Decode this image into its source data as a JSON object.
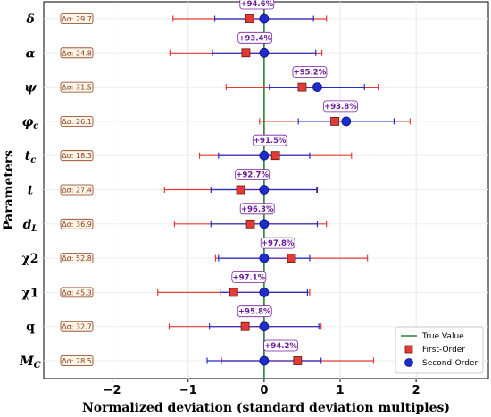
{
  "chart_data": {
    "type": "errorbar",
    "xlabel": "Normalized deviation (standard deviation multiples)",
    "ylabel": "Parameters",
    "xlim": [
      -2.9,
      2.95
    ],
    "xticks": [
      -2,
      -1,
      0,
      1,
      2
    ],
    "xtick_labels": [
      "−2",
      "−1",
      "0",
      "1",
      "2"
    ],
    "grid": true,
    "legend_position": "lower-right",
    "true_value": 0,
    "series": [
      {
        "name": "True Value",
        "color": "#2e7d32",
        "marker": "line"
      },
      {
        "name": "First-Order",
        "color": "#e53935",
        "marker": "square"
      },
      {
        "name": "Second-Order",
        "color": "#1e2ccc",
        "marker": "circle"
      }
    ],
    "parameters": [
      {
        "label": "δ",
        "style": "italic",
        "delta_sigma": "Δσ: 29.7",
        "improvement": "+94.6%",
        "first": {
          "center": -0.19,
          "low": -1.2,
          "high": 0.82
        },
        "second": {
          "center": 0.0,
          "low": -0.65,
          "high": 0.65
        }
      },
      {
        "label": "α",
        "style": "italic",
        "delta_sigma": "Δσ: 24.8",
        "improvement": "+93.4%",
        "first": {
          "center": -0.24,
          "low": -1.24,
          "high": 0.76
        },
        "second": {
          "center": 0.0,
          "low": -0.68,
          "high": 0.68
        }
      },
      {
        "label": "ψ",
        "style": "italic",
        "delta_sigma": "Δσ: 31.5",
        "improvement": "+95.2%",
        "first": {
          "center": 0.5,
          "low": -0.5,
          "high": 1.5
        },
        "second": {
          "center": 0.7,
          "low": 0.07,
          "high": 1.32
        }
      },
      {
        "label": "φ",
        "sub": "c",
        "style": "italic",
        "delta_sigma": "Δσ: 26.1",
        "improvement": "+93.8%",
        "first": {
          "center": 0.93,
          "low": -0.06,
          "high": 1.92
        },
        "second": {
          "center": 1.08,
          "low": 0.45,
          "high": 1.71
        }
      },
      {
        "label": "t",
        "sub": "c",
        "style": "italic",
        "delta_sigma": "Δσ: 18.3",
        "improvement": "+91.5%",
        "first": {
          "center": 0.15,
          "low": -0.85,
          "high": 1.15
        },
        "second": {
          "center": 0.0,
          "low": -0.6,
          "high": 0.6
        }
      },
      {
        "label": "t",
        "style": "italic",
        "delta_sigma": "Δσ: 27.4",
        "improvement": "+92.7%",
        "first": {
          "center": -0.31,
          "low": -1.31,
          "high": 0.69
        },
        "second": {
          "center": 0.0,
          "low": -0.7,
          "high": 0.7
        }
      },
      {
        "label": "d",
        "sub": "L",
        "style": "italic",
        "delta_sigma": "Δσ: 36.9",
        "improvement": "+96.3%",
        "first": {
          "center": -0.18,
          "low": -1.18,
          "high": 0.82
        },
        "second": {
          "center": 0.0,
          "low": -0.7,
          "high": 0.7
        }
      },
      {
        "label": "χ2",
        "style": "plain",
        "delta_sigma": "Δσ: 52.8",
        "improvement": "+97.8%",
        "first": {
          "center": 0.36,
          "low": -0.64,
          "high": 1.36
        },
        "second": {
          "center": 0.0,
          "low": -0.6,
          "high": 0.6
        }
      },
      {
        "label": "χ1",
        "style": "plain",
        "delta_sigma": "Δσ: 45.3",
        "improvement": "+97.1%",
        "first": {
          "center": -0.4,
          "low": -1.4,
          "high": 0.6
        },
        "second": {
          "center": 0.0,
          "low": -0.57,
          "high": 0.57
        }
      },
      {
        "label": "q",
        "style": "plain",
        "delta_sigma": "Δσ: 32.7",
        "improvement": "+95.8%",
        "first": {
          "center": -0.25,
          "low": -1.25,
          "high": 0.75
        },
        "second": {
          "center": 0.0,
          "low": -0.72,
          "high": 0.72
        }
      },
      {
        "label": "M",
        "sub": "C",
        "style": "italic",
        "delta_sigma": "Δσ: 28.5",
        "improvement": "+94.2%",
        "first": {
          "center": 0.44,
          "low": -0.56,
          "high": 1.44
        },
        "second": {
          "center": 0.0,
          "low": -0.75,
          "high": 0.75
        }
      }
    ]
  }
}
